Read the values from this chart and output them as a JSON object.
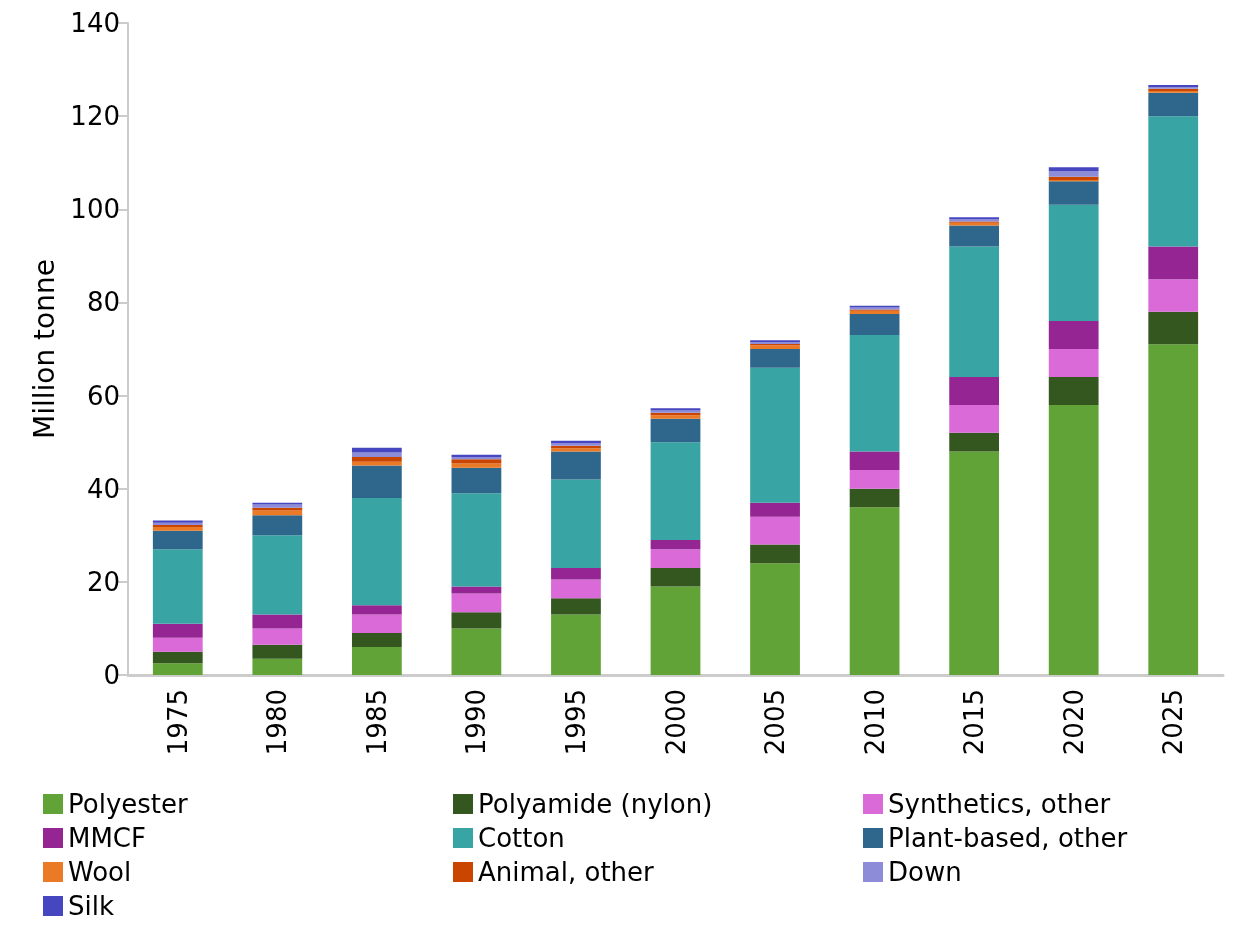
{
  "chart_data": {
    "type": "bar",
    "stacked": true,
    "ylabel": "Million tonne",
    "categories": [
      "1975",
      "1980",
      "1985",
      "1990",
      "1995",
      "2000",
      "2005",
      "2010",
      "2015",
      "2020",
      "2025"
    ],
    "ylim": [
      0,
      140
    ],
    "yticks": [
      0,
      20,
      40,
      60,
      80,
      100,
      120,
      140
    ],
    "grid": false,
    "legend": "bottom",
    "series": [
      {
        "name": "Polyester",
        "color": "#62a337",
        "values": [
          2.5,
          3.5,
          6,
          10,
          13,
          19,
          24,
          36,
          48,
          58,
          71
        ]
      },
      {
        "name": "Polyamide (nylon)",
        "color": "#34561f",
        "values": [
          2.5,
          3,
          3,
          3.5,
          3.5,
          4,
          4,
          4,
          4,
          6,
          7
        ]
      },
      {
        "name": "Synthetics, other",
        "color": "#d96ad8",
        "values": [
          3,
          3.5,
          4,
          4,
          4,
          4,
          6,
          4,
          6,
          6,
          7
        ]
      },
      {
        "name": "MMCF",
        "color": "#942592",
        "values": [
          3,
          3,
          2,
          1.5,
          2.5,
          2,
          3,
          4,
          6,
          6,
          7
        ]
      },
      {
        "name": "Cotton",
        "color": "#38a4a4",
        "values": [
          16,
          17,
          23,
          20,
          19,
          21,
          29,
          25,
          28,
          25,
          28
        ]
      },
      {
        "name": "Plant-based, other",
        "color": "#2f668c",
        "values": [
          4,
          4.3,
          7,
          5.5,
          6,
          5,
          4,
          4.5,
          4.5,
          5,
          5
        ]
      },
      {
        "name": "Wool",
        "color": "#ea7a25",
        "values": [
          0.8,
          1,
          0.8,
          0.9,
          0.7,
          0.8,
          0.8,
          0.7,
          0.6,
          0.3,
          0.4
        ]
      },
      {
        "name": "Animal, other",
        "color": "#c94500",
        "values": [
          0.4,
          0.6,
          1,
          0.9,
          0.5,
          0.5,
          0.3,
          0.3,
          0.3,
          0.7,
          0.5
        ]
      },
      {
        "name": "Down",
        "color": "#8c8cd8",
        "values": [
          0.5,
          0.7,
          1,
          0.5,
          0.6,
          0.5,
          0.4,
          0.4,
          0.5,
          1.2,
          0.3
        ]
      },
      {
        "name": "Silk",
        "color": "#4646c0",
        "values": [
          0.5,
          0.4,
          1,
          0.5,
          0.5,
          0.5,
          0.4,
          0.4,
          0.4,
          0.8,
          0.5
        ]
      }
    ]
  }
}
